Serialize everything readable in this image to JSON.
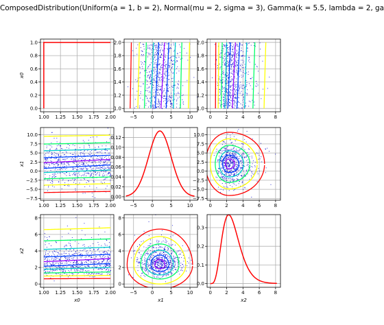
{
  "title": "ComposedDistribution(Uniform(a = 1, b = 2), Normal(mu = 2, sigma = 3), Gamma(k = 5.5, lambda = 2, ga",
  "colors": {
    "pdf": "#ff0000",
    "points": "#0000cc",
    "levels": [
      "#ff0000",
      "#ffff00",
      "#00ff66",
      "#00cccc",
      "#0044ff",
      "#9900ff"
    ]
  },
  "chart_data": [
    {
      "id": "p00",
      "row": 0,
      "col": 0,
      "type": "line",
      "xlim": [
        0.95,
        2.05
      ],
      "ylim": [
        -0.05,
        1.05
      ],
      "xticks": [],
      "yticks": [
        "0.0",
        "0.2",
        "0.4",
        "0.6",
        "0.8",
        "1.0"
      ],
      "ytick_values": [
        0,
        0.2,
        0.4,
        0.6,
        0.8,
        1.0
      ],
      "xlabel": "",
      "ylabel": "x0"
    },
    {
      "id": "p01",
      "row": 0,
      "col": 1,
      "type": "contour",
      "xlim": [
        -7.5,
        12
      ],
      "ylim": [
        0.95,
        2.05
      ],
      "xticks": [],
      "yticks": [
        "1.0",
        "1.2",
        "1.4",
        "1.6",
        "1.8",
        "2.0"
      ],
      "ytick_values": [
        1.0,
        1.2,
        1.4,
        1.6,
        1.8,
        2.0
      ],
      "xlabel": "",
      "ylabel": ""
    },
    {
      "id": "p02",
      "row": 0,
      "col": 2,
      "type": "contour",
      "xlim": [
        -0.4,
        8.6
      ],
      "ylim": [
        0.95,
        2.05
      ],
      "xticks": [],
      "yticks": [
        "1.0",
        "1.2",
        "1.4",
        "1.6",
        "1.8",
        "2.0"
      ],
      "ytick_values": [
        1.0,
        1.2,
        1.4,
        1.6,
        1.8,
        2.0
      ],
      "xlabel": "",
      "ylabel": ""
    },
    {
      "id": "p10",
      "row": 1,
      "col": 0,
      "type": "contour",
      "xlim": [
        0.95,
        2.05
      ],
      "ylim": [
        -8,
        12
      ],
      "xticks": [],
      "yticks": [
        "−7.5",
        "−5.0",
        "−2.5",
        "0.0",
        "2.5",
        "5.0",
        "7.5",
        "10.0"
      ],
      "ytick_values": [
        -7.5,
        -5,
        -2.5,
        0,
        2.5,
        5,
        7.5,
        10
      ],
      "xlabel": "",
      "ylabel": "x1"
    },
    {
      "id": "p11",
      "row": 1,
      "col": 1,
      "type": "line",
      "xlim": [
        -7.5,
        12
      ],
      "ylim": [
        -0.007,
        0.14
      ],
      "xticks": [],
      "yticks": [
        "0.00",
        "0.02",
        "0.04",
        "0.06",
        "0.08",
        "0.10",
        "0.12"
      ],
      "ytick_values": [
        0,
        0.02,
        0.04,
        0.06,
        0.08,
        0.1,
        0.12
      ],
      "xlabel": "",
      "ylabel": ""
    },
    {
      "id": "p12",
      "row": 1,
      "col": 2,
      "type": "contour",
      "xlim": [
        -0.4,
        8.6
      ],
      "ylim": [
        -8,
        12
      ],
      "xticks": [],
      "yticks": [
        "−7.5",
        "−5.0",
        "−2.5",
        "0.0",
        "2.5",
        "5.0",
        "7.5",
        "10.0"
      ],
      "ytick_values": [
        -7.5,
        -5,
        -2.5,
        0,
        2.5,
        5,
        7.5,
        10
      ],
      "xlabel": "",
      "ylabel": ""
    },
    {
      "id": "p20",
      "row": 2,
      "col": 0,
      "type": "contour",
      "xlim": [
        0.95,
        2.05
      ],
      "ylim": [
        -0.4,
        8.4
      ],
      "xticks": [
        "1.00",
        "1.25",
        "1.50",
        "1.75",
        "2.00"
      ],
      "xtick_values": [
        1.0,
        1.25,
        1.5,
        1.75,
        2.0
      ],
      "yticks": [
        "0",
        "2",
        "4",
        "6",
        "8"
      ],
      "ytick_values": [
        0,
        2,
        4,
        6,
        8
      ],
      "xlabel": "x0",
      "ylabel": "x2"
    },
    {
      "id": "p21",
      "row": 2,
      "col": 1,
      "type": "contour",
      "xlim": [
        -7.5,
        12
      ],
      "ylim": [
        -0.4,
        8.4
      ],
      "xticks": [
        "−5",
        "0",
        "5",
        "10"
      ],
      "xtick_values": [
        -5,
        0,
        5,
        10
      ],
      "yticks": [
        "0",
        "2",
        "4",
        "6",
        "8"
      ],
      "ytick_values": [
        0,
        2,
        4,
        6,
        8
      ],
      "xlabel": "x1",
      "ylabel": ""
    },
    {
      "id": "p22",
      "row": 2,
      "col": 2,
      "type": "line",
      "xlim": [
        -0.4,
        8.6
      ],
      "ylim": [
        -0.02,
        0.37
      ],
      "xticks": [
        "0",
        "2",
        "4",
        "6",
        "8"
      ],
      "xtick_values": [
        0,
        2,
        4,
        6,
        8
      ],
      "yticks": [
        "0.0",
        "0.1",
        "0.2",
        "0.3"
      ],
      "ytick_values": [
        0,
        0.1,
        0.2,
        0.3
      ],
      "xlabel": "x2",
      "ylabel": ""
    }
  ],
  "row_xticks": [
    {
      "labels": [
        "1.00",
        "1.25",
        "1.50",
        "1.75",
        "2.00"
      ],
      "values": [
        1.0,
        1.25,
        1.5,
        1.75,
        2.0
      ]
    },
    {
      "labels": [
        "−5",
        "0",
        "5",
        "10"
      ],
      "values": [
        -5,
        0,
        5,
        10
      ]
    },
    {
      "labels": [
        "0",
        "2",
        "4",
        "6",
        "8"
      ],
      "values": [
        0,
        2,
        4,
        6,
        8
      ]
    }
  ]
}
